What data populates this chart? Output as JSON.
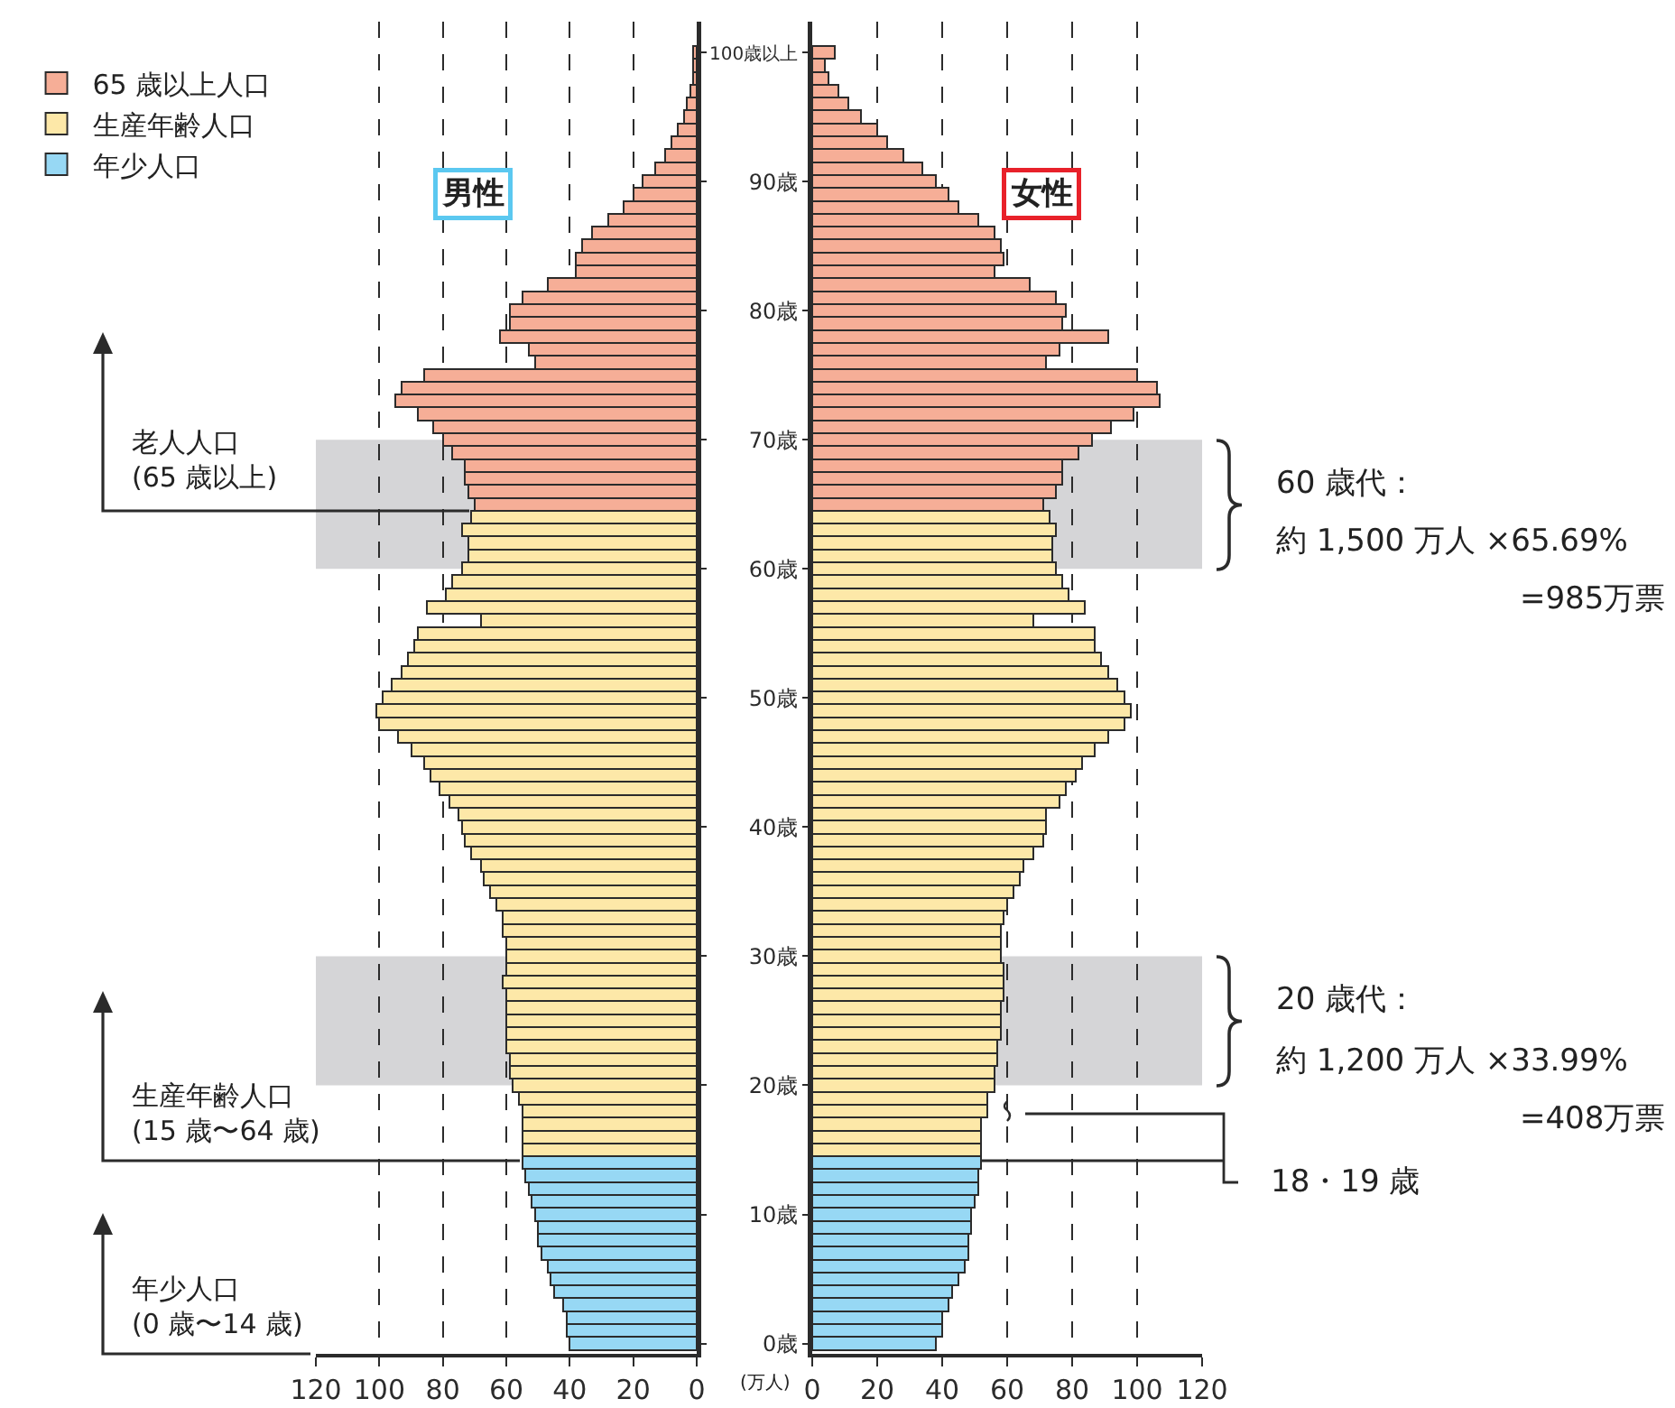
{
  "chart_data": [
    {
      "type": "bar",
      "orientation": "horizontal",
      "stacked": true,
      "grid": "x",
      "legend": "top left",
      "tick_labels": "x",
      "categories": [
        "100歳以上",
        null,
        null,
        null,
        null,
        null,
        null,
        null,
        null,
        null,
        "90歳",
        null,
        null,
        null,
        null,
        null,
        null,
        null,
        null,
        null,
        "80歳",
        null,
        null,
        null,
        null,
        null,
        null,
        null,
        null,
        null,
        "70歳",
        null,
        null,
        null,
        null,
        null,
        null,
        null,
        null,
        null,
        "60歳",
        null,
        null,
        null,
        null,
        null,
        null,
        null,
        null,
        null,
        "50歳",
        null,
        null,
        null,
        null,
        null,
        null,
        null,
        null,
        null,
        "40歳",
        null,
        null,
        null,
        null,
        null,
        null,
        null,
        null,
        null,
        "30歳",
        null,
        null,
        null,
        null,
        null,
        null,
        null,
        null,
        null,
        "20歳",
        null,
        null,
        null,
        null,
        null,
        null,
        null,
        null,
        null,
        "10歳",
        null,
        null,
        null,
        null,
        null,
        null,
        null,
        null,
        null,
        "0歳"
      ],
      "xlim": [
        120,
        0
      ],
      "xticks": [
        120,
        100,
        80,
        60,
        40,
        20,
        0
      ],
      "series": [
        {
          "name": "65 歳以上人口",
          "color": "#f6ae97",
          "values": [
            1,
            1,
            1,
            2,
            3,
            4,
            6,
            8,
            10,
            13,
            17,
            20,
            23,
            28,
            33,
            36,
            38,
            38,
            47,
            55,
            59,
            59,
            62,
            53,
            51,
            86,
            93,
            95,
            88,
            83,
            80,
            77,
            73,
            73,
            72,
            70,
            null,
            null,
            null,
            null,
            null,
            null,
            null,
            null,
            null,
            null,
            null,
            null,
            null,
            null,
            null,
            null,
            null,
            null,
            null,
            null,
            null,
            null,
            null,
            null,
            null,
            null,
            null,
            null,
            null,
            null,
            null,
            null,
            null,
            null,
            null,
            null,
            null,
            null,
            null,
            null,
            null,
            null,
            null,
            null,
            null,
            null,
            null,
            null,
            null,
            null,
            null,
            null,
            null,
            null,
            null,
            null,
            null,
            null,
            null,
            null,
            null,
            null,
            null,
            null,
            null
          ]
        },
        {
          "name": "生産年齢人口",
          "color": "#fde8a8",
          "values": [
            null,
            null,
            null,
            null,
            null,
            null,
            null,
            null,
            null,
            null,
            null,
            null,
            null,
            null,
            null,
            null,
            null,
            null,
            null,
            null,
            null,
            null,
            null,
            null,
            null,
            null,
            null,
            null,
            null,
            null,
            null,
            null,
            null,
            null,
            null,
            null,
            71,
            74,
            72,
            72,
            74,
            77,
            79,
            85,
            68,
            88,
            89,
            91,
            93,
            96,
            99,
            101,
            100,
            94,
            90,
            86,
            84,
            81,
            78,
            75,
            74,
            73,
            71,
            68,
            67,
            65,
            63,
            61,
            61,
            60,
            60,
            60,
            61,
            60,
            60,
            60,
            60,
            60,
            59,
            59,
            58,
            56,
            55,
            55,
            55,
            55,
            null,
            null,
            null,
            null,
            null,
            null,
            null,
            null,
            null,
            null,
            null,
            null,
            null,
            null,
            null
          ]
        },
        {
          "name": "年少人口",
          "color": "#97d8f4",
          "values": [
            null,
            null,
            null,
            null,
            null,
            null,
            null,
            null,
            null,
            null,
            null,
            null,
            null,
            null,
            null,
            null,
            null,
            null,
            null,
            null,
            null,
            null,
            null,
            null,
            null,
            null,
            null,
            null,
            null,
            null,
            null,
            null,
            null,
            null,
            null,
            null,
            null,
            null,
            null,
            null,
            null,
            null,
            null,
            null,
            null,
            null,
            null,
            null,
            null,
            null,
            null,
            null,
            null,
            null,
            null,
            null,
            null,
            null,
            null,
            null,
            null,
            null,
            null,
            null,
            null,
            null,
            null,
            null,
            null,
            null,
            null,
            null,
            null,
            null,
            null,
            null,
            null,
            null,
            null,
            null,
            null,
            null,
            null,
            null,
            null,
            null,
            55,
            54,
            53,
            52,
            51,
            50,
            50,
            49,
            47,
            46,
            45,
            42,
            41,
            41,
            40
          ]
        }
      ],
      "bands": [
        {
          "axis": "y",
          "from": "60歳",
          "to": "70歳",
          "color": "#d5d5d7"
        },
        {
          "axis": "y",
          "from": "20歳",
          "to": "30歳",
          "color": "#d5d5d7"
        }
      ],
      "annotations": [
        "男性",
        "老人人口\n(65 歳以上)",
        "生産年齢人口\n(15 歳〜64 歳)",
        "年少人口\n(0 歳〜14 歳)"
      ]
    },
    {
      "type": "bar",
      "orientation": "horizontal",
      "stacked": true,
      "grid": "x",
      "categories": [
        "100歳以上",
        null,
        null,
        null,
        null,
        null,
        null,
        null,
        null,
        null,
        "90歳",
        null,
        null,
        null,
        null,
        null,
        null,
        null,
        null,
        null,
        "80歳",
        null,
        null,
        null,
        null,
        null,
        null,
        null,
        null,
        null,
        "70歳",
        null,
        null,
        null,
        null,
        null,
        null,
        null,
        null,
        null,
        "60歳",
        null,
        null,
        null,
        null,
        null,
        null,
        null,
        null,
        null,
        "50歳",
        null,
        null,
        null,
        null,
        null,
        null,
        null,
        null,
        null,
        "40歳",
        null,
        null,
        null,
        null,
        null,
        null,
        null,
        null,
        null,
        "30歳",
        null,
        null,
        null,
        null,
        null,
        null,
        null,
        null,
        null,
        "20歳",
        null,
        null,
        null,
        null,
        null,
        null,
        null,
        null,
        null,
        "10歳",
        null,
        null,
        null,
        null,
        null,
        null,
        null,
        null,
        null,
        "0歳"
      ],
      "xlim": [
        0,
        120
      ],
      "xticks": [
        0,
        20,
        40,
        60,
        80,
        100,
        120
      ],
      "series": [
        {
          "color": "#f6ae97",
          "values": [
            7,
            4,
            5,
            8,
            11,
            15,
            20,
            23,
            28,
            34,
            38,
            42,
            45,
            51,
            56,
            58,
            59,
            56,
            67,
            75,
            78,
            77,
            91,
            76,
            72,
            100,
            106,
            107,
            99,
            92,
            86,
            82,
            77,
            77,
            75,
            71,
            null,
            null,
            null,
            null,
            null,
            null,
            null,
            null,
            null,
            null,
            null,
            null,
            null,
            null,
            null,
            null,
            null,
            null,
            null,
            null,
            null,
            null,
            null,
            null,
            null,
            null,
            null,
            null,
            null,
            null,
            null,
            null,
            null,
            null,
            null,
            null,
            null,
            null,
            null,
            null,
            null,
            null,
            null,
            null,
            null,
            null,
            null,
            null,
            null,
            null,
            null,
            null,
            null,
            null,
            null,
            null,
            null,
            null,
            null,
            null,
            null,
            null,
            null,
            null,
            null
          ]
        },
        {
          "color": "#fde8a8",
          "values": [
            null,
            null,
            null,
            null,
            null,
            null,
            null,
            null,
            null,
            null,
            null,
            null,
            null,
            null,
            null,
            null,
            null,
            null,
            null,
            null,
            null,
            null,
            null,
            null,
            null,
            null,
            null,
            null,
            null,
            null,
            null,
            null,
            null,
            null,
            null,
            null,
            73,
            75,
            74,
            74,
            75,
            77,
            79,
            84,
            68,
            87,
            87,
            89,
            91,
            94,
            96,
            98,
            96,
            91,
            87,
            83,
            81,
            78,
            76,
            72,
            72,
            71,
            68,
            65,
            64,
            62,
            60,
            59,
            58,
            58,
            58,
            59,
            59,
            59,
            58,
            58,
            58,
            57,
            57,
            56,
            56,
            54,
            54,
            52,
            52,
            52,
            null,
            null,
            null,
            null,
            null,
            null,
            null,
            null,
            null,
            null,
            null,
            null,
            null,
            null,
            null
          ]
        },
        {
          "color": "#97d8f4",
          "values": [
            null,
            null,
            null,
            null,
            null,
            null,
            null,
            null,
            null,
            null,
            null,
            null,
            null,
            null,
            null,
            null,
            null,
            null,
            null,
            null,
            null,
            null,
            null,
            null,
            null,
            null,
            null,
            null,
            null,
            null,
            null,
            null,
            null,
            null,
            null,
            null,
            null,
            null,
            null,
            null,
            null,
            null,
            null,
            null,
            null,
            null,
            null,
            null,
            null,
            null,
            null,
            null,
            null,
            null,
            null,
            null,
            null,
            null,
            null,
            null,
            null,
            null,
            null,
            null,
            null,
            null,
            null,
            null,
            null,
            null,
            null,
            null,
            null,
            null,
            null,
            null,
            null,
            null,
            null,
            null,
            null,
            null,
            null,
            null,
            null,
            null,
            52,
            51,
            51,
            50,
            49,
            49,
            48,
            48,
            47,
            45,
            43,
            42,
            40,
            40,
            38
          ]
        }
      ],
      "bands": [
        {
          "axis": "y",
          "from": "60歳",
          "to": "70歳",
          "color": "#d5d5d7",
          "label": "60 歳代："
        },
        {
          "axis": "y",
          "from": "20歳",
          "to": "30歳",
          "color": "#d5d5d7",
          "label": "20 歳代："
        }
      ],
      "annotations": [
        "女性",
        "18・19 歳",
        "(万人)",
        "約 1,500 万人 ×65.69%",
        "=985万票",
        "約 1,200 万人 ×33.99%",
        "=408万票"
      ]
    }
  ]
}
